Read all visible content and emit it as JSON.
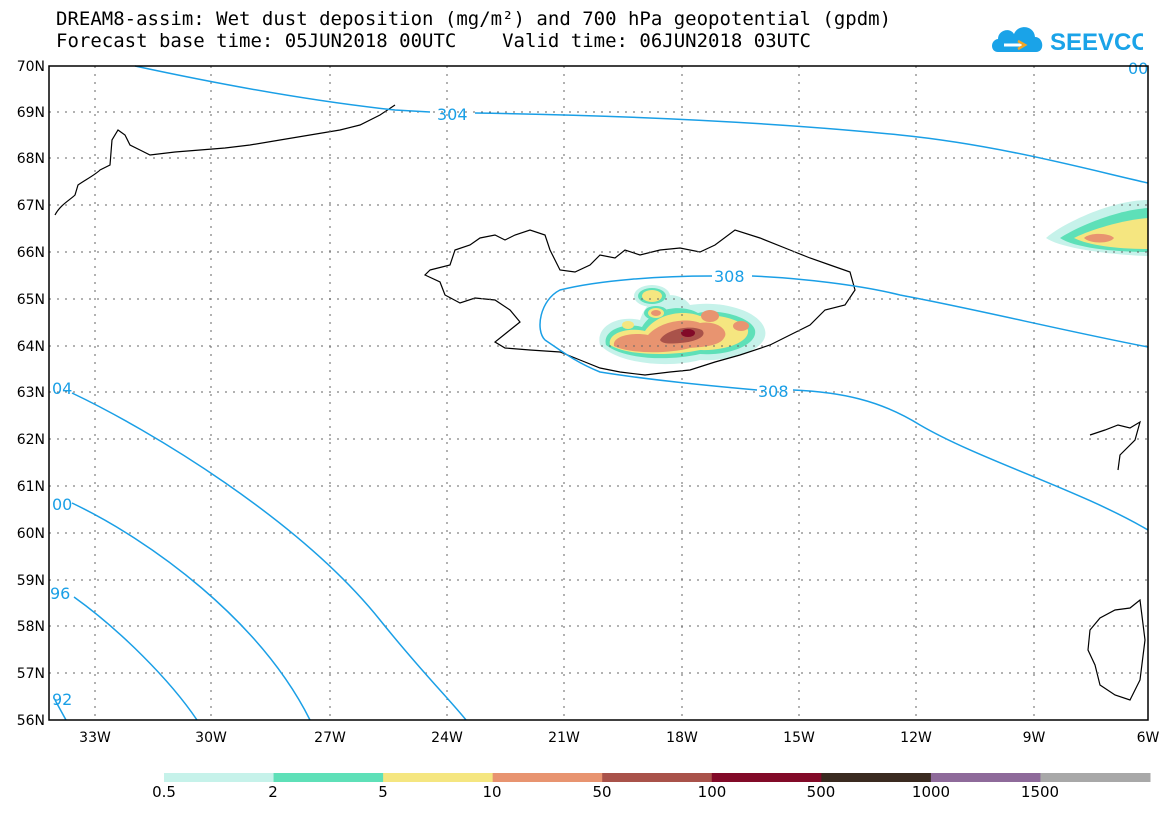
{
  "title": {
    "line1": "DREAM8-assim: Wet dust deposition (mg/m²) and 700 hPa geopotential (gpdm)",
    "line2": "Forecast base time: 05JUN2018 00UTC    Valid time: 06JUN2018 03UTC"
  },
  "logo": {
    "text": "SEEVCCC",
    "color": "#1aa3e8"
  },
  "map": {
    "lat_labels": [
      "70N",
      "69N",
      "68N",
      "67N",
      "66N",
      "65N",
      "64N",
      "63N",
      "62N",
      "61N",
      "60N",
      "59N",
      "58N",
      "57N",
      "56N"
    ],
    "lon_labels": [
      "33W",
      "30W",
      "27W",
      "24W",
      "21W",
      "18W",
      "15W",
      "12W",
      "9W",
      "6W"
    ],
    "contour_labels": [
      "304",
      "308",
      "308",
      "04",
      "00",
      "96",
      "92",
      "00"
    ],
    "contour_color": "#1a9fe6"
  },
  "colorbar": {
    "ticks": [
      "0.5",
      "2",
      "5",
      "10",
      "50",
      "100",
      "500",
      "1000",
      "1500"
    ],
    "colors": [
      "#c6f2ea",
      "#5ee0b8",
      "#f5e680",
      "#e89470",
      "#a9524a",
      "#820a28",
      "#3a2a20",
      "#8e6a9a",
      "#a8a8a8"
    ]
  }
}
